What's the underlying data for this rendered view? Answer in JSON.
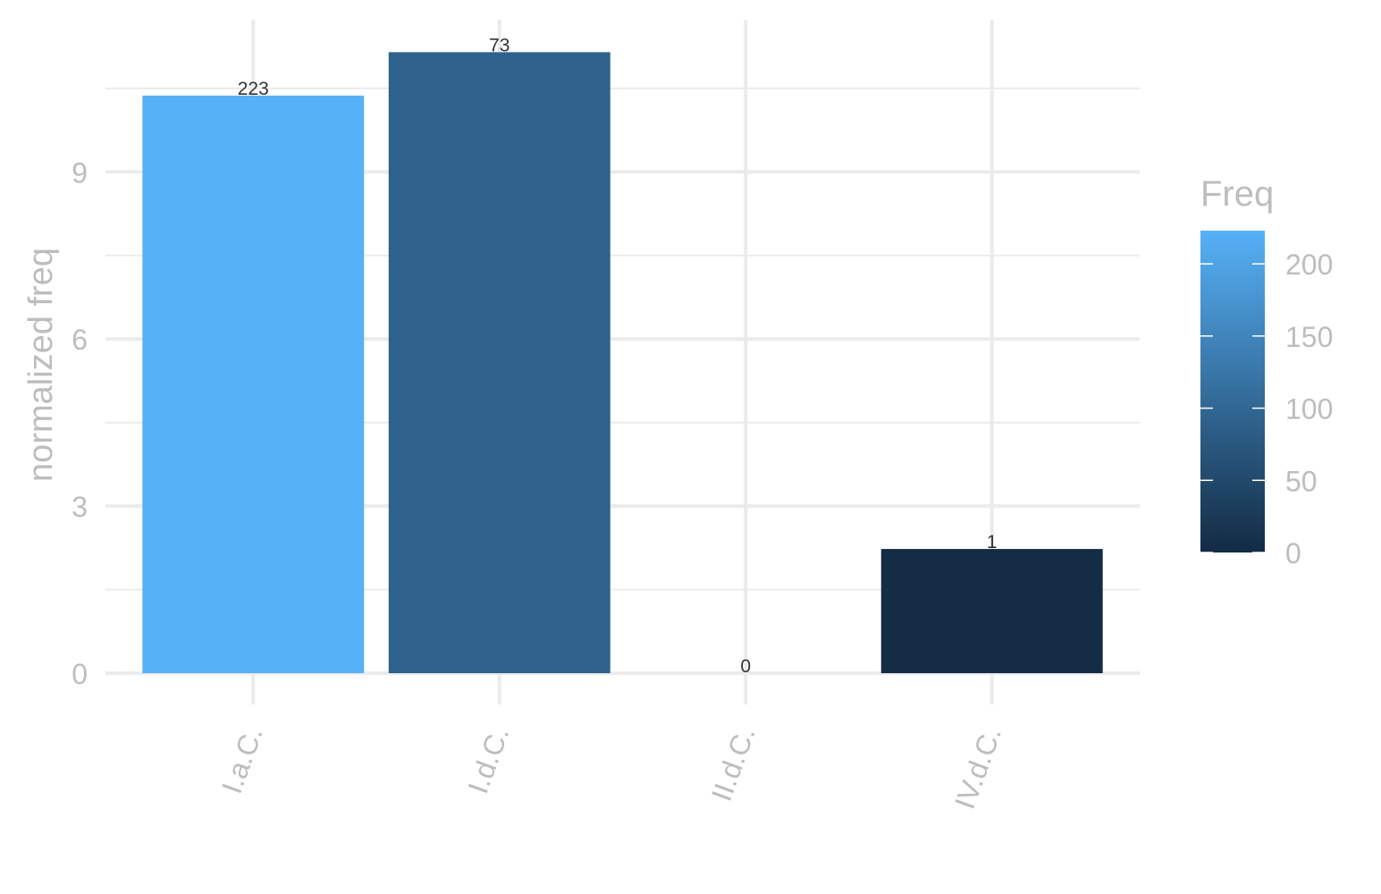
{
  "chart_data": {
    "type": "bar",
    "categories": [
      "I.a.C.",
      "I.d.C.",
      "II.d.C.",
      "IV.d.C."
    ],
    "values": [
      10.37,
      11.15,
      0,
      2.23
    ],
    "freq": [
      223,
      73,
      0,
      1
    ],
    "bar_labels": [
      "223",
      "73",
      "0",
      "1"
    ],
    "title": "",
    "xlabel": "",
    "ylabel": "normalized freq",
    "ylim": [
      -0.6,
      11.7
    ],
    "y_ticks": [
      "0",
      "3",
      "6",
      "9"
    ],
    "y_tick_values": [
      0,
      3,
      6,
      9
    ],
    "grid": true,
    "legend": {
      "title": "Freq",
      "type": "colorbar",
      "placement": "right",
      "range": [
        0,
        223
      ],
      "ticks": [
        "0",
        "50",
        "100",
        "150",
        "200"
      ],
      "tick_values": [
        0,
        50,
        100,
        150,
        200
      ],
      "color_low": "#132B43",
      "color_high": "#56B1F7"
    }
  }
}
